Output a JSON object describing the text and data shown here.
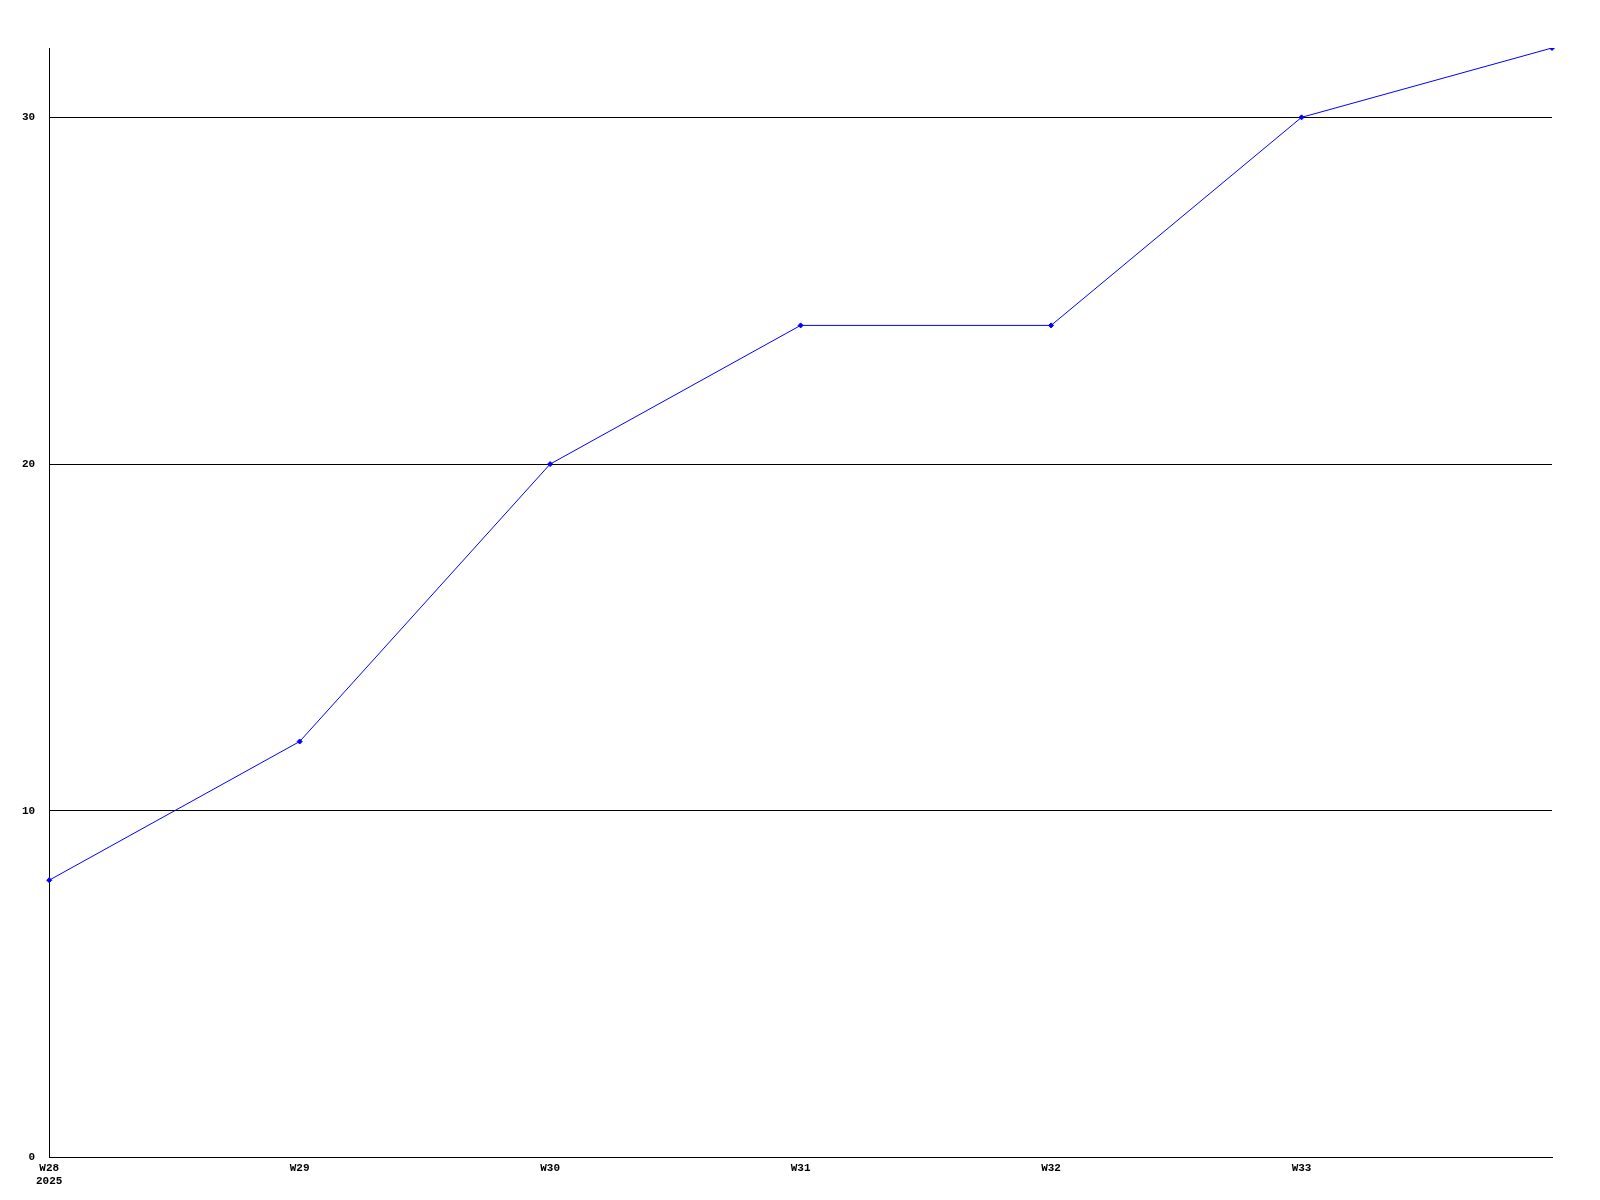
{
  "chart_data": {
    "type": "line",
    "categories": [
      "W28\n2025",
      "W29",
      "W30",
      "W31",
      "W32",
      "W33",
      null
    ],
    "series": [
      {
        "color": "#0000ff",
        "values": [
          8,
          12,
          20,
          24,
          24,
          30,
          32
        ]
      }
    ],
    "ylim": [
      0,
      32
    ],
    "yticks": [
      0,
      10,
      20,
      30
    ],
    "grid": "y",
    "legend": false,
    "marker": "diamond",
    "line_style": "solid"
  }
}
